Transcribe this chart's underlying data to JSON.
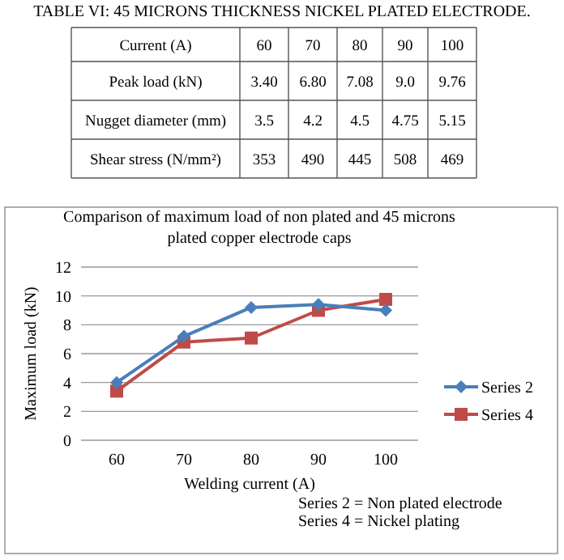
{
  "chart_data": {
    "type": "line",
    "title": "Comparison of maximum load of non plated and  45 microns plated copper electrode caps",
    "xlabel": "Welding current (A)",
    "ylabel": "Maximum load (kN)",
    "categories": [
      "60",
      "70",
      "80",
      "90",
      "100"
    ],
    "series": [
      {
        "name": "Series 2",
        "color": "#4a7ebb",
        "marker": "diamond",
        "values": [
          4.0,
          7.2,
          9.2,
          9.4,
          9.0
        ]
      },
      {
        "name": "Series 4",
        "color": "#be4b48",
        "marker": "square",
        "values": [
          3.4,
          6.8,
          7.08,
          9.0,
          9.76
        ]
      }
    ],
    "ylim": [
      0,
      12
    ],
    "yticks": [
      0,
      2,
      4,
      6,
      8,
      10,
      12
    ],
    "grid": "y",
    "legend": "right",
    "annotations": [
      "TABLE VI:  45 MICRONS THICKNESS NICKEL PLATED ELECTRODE.",
      "Current (A)",
      "60",
      "70",
      "80",
      "90",
      "100",
      "Peak load (kN)",
      "3.40",
      "6.80",
      "7.08",
      "9.0",
      "9.76",
      "Nugget diameter (mm)",
      "3.5",
      "4.2",
      "4.5",
      "4.75",
      "5.15",
      "Shear stress (N/mm²)",
      "353",
      "490",
      "445",
      "508",
      "469",
      "Series 2 = Non plated electrode",
      "Series 4 = Nickel plating"
    ]
  }
}
